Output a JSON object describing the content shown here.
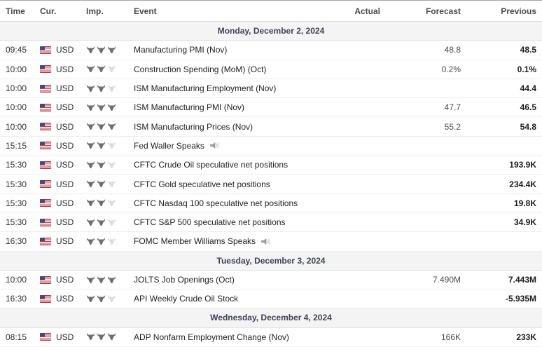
{
  "header": {
    "columns": [
      "Time",
      "Cur.",
      "Imp.",
      "Event",
      "Actual",
      "Forecast",
      "Previous"
    ]
  },
  "icons": {
    "flag": "us-flag-icon",
    "importance": "bull-icon",
    "speech": "speaker-icon"
  },
  "colors": {
    "importance_active": "#6e6e6e",
    "importance_inactive": "#dcdcdc",
    "date_row_bg": "#f4f4f5",
    "date_row_text": "#3c4356",
    "flag_red": "#c43c44",
    "flag_blue": "#3f4a8c",
    "previous_text": "#1c1c1c",
    "forecast_text": "#4b4b4b"
  },
  "calendar": {
    "sections": [
      {
        "date_label": "Monday, December 2, 2024",
        "rows": [
          {
            "time": "09:45",
            "currency": "USD",
            "flag": "us",
            "importance": 3,
            "event": "Manufacturing PMI (Nov)",
            "speech": false,
            "actual": "",
            "forecast": "48.8",
            "previous": "48.5"
          },
          {
            "time": "10:00",
            "currency": "USD",
            "flag": "us",
            "importance": 2,
            "event": "Construction Spending (MoM) (Oct)",
            "speech": false,
            "actual": "",
            "forecast": "0.2%",
            "previous": "0.1%"
          },
          {
            "time": "10:00",
            "currency": "USD",
            "flag": "us",
            "importance": 2,
            "event": "ISM Manufacturing Employment (Nov)",
            "speech": false,
            "actual": "",
            "forecast": "",
            "previous": "44.4"
          },
          {
            "time": "10:00",
            "currency": "USD",
            "flag": "us",
            "importance": 3,
            "event": "ISM Manufacturing PMI (Nov)",
            "speech": false,
            "actual": "",
            "forecast": "47.7",
            "previous": "46.5"
          },
          {
            "time": "10:00",
            "currency": "USD",
            "flag": "us",
            "importance": 3,
            "event": "ISM Manufacturing Prices (Nov)",
            "speech": false,
            "actual": "",
            "forecast": "55.2",
            "previous": "54.8"
          },
          {
            "time": "15:15",
            "currency": "USD",
            "flag": "us",
            "importance": 2,
            "event": "Fed Waller Speaks",
            "speech": true,
            "actual": "",
            "forecast": "",
            "previous": ""
          },
          {
            "time": "15:30",
            "currency": "USD",
            "flag": "us",
            "importance": 2,
            "event": "CFTC Crude Oil speculative net positions",
            "speech": false,
            "actual": "",
            "forecast": "",
            "previous": "193.9K"
          },
          {
            "time": "15:30",
            "currency": "USD",
            "flag": "us",
            "importance": 2,
            "event": "CFTC Gold speculative net positions",
            "speech": false,
            "actual": "",
            "forecast": "",
            "previous": "234.4K"
          },
          {
            "time": "15:30",
            "currency": "USD",
            "flag": "us",
            "importance": 2,
            "event": "CFTC Nasdaq 100 speculative net positions",
            "speech": false,
            "actual": "",
            "forecast": "",
            "previous": "19.8K"
          },
          {
            "time": "15:30",
            "currency": "USD",
            "flag": "us",
            "importance": 2,
            "event": "CFTC S&P 500 speculative net positions",
            "speech": false,
            "actual": "",
            "forecast": "",
            "previous": "34.9K"
          },
          {
            "time": "16:30",
            "currency": "USD",
            "flag": "us",
            "importance": 2,
            "event": "FOMC Member Williams Speaks",
            "speech": true,
            "actual": "",
            "forecast": "",
            "previous": ""
          }
        ]
      },
      {
        "date_label": "Tuesday, December 3, 2024",
        "rows": [
          {
            "time": "10:00",
            "currency": "USD",
            "flag": "us",
            "importance": 3,
            "event": "JOLTS Job Openings (Oct)",
            "speech": false,
            "actual": "",
            "forecast": "7.490M",
            "previous": "7.443M"
          },
          {
            "time": "16:30",
            "currency": "USD",
            "flag": "us",
            "importance": 2,
            "event": "API Weekly Crude Oil Stock",
            "speech": false,
            "actual": "",
            "forecast": "",
            "previous": "-5.935M"
          }
        ]
      },
      {
        "date_label": "Wednesday, December 4, 2024",
        "rows": [
          {
            "time": "08:15",
            "currency": "USD",
            "flag": "us",
            "importance": 3,
            "event": "ADP Nonfarm Employment Change (Nov)",
            "speech": false,
            "actual": "",
            "forecast": "166K",
            "previous": "233K"
          }
        ]
      }
    ]
  }
}
